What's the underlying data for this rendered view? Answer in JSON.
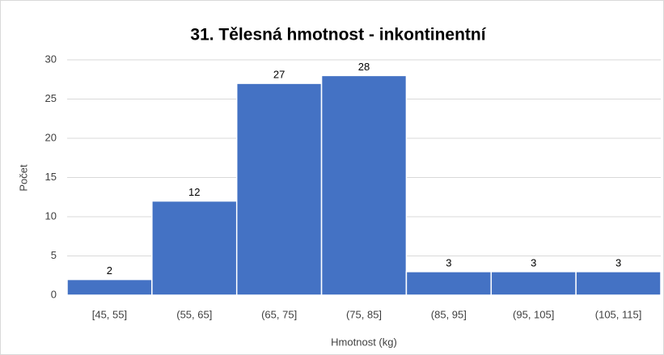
{
  "chart_data": {
    "type": "bar",
    "title": "31. Tělesná hmotnost - inkontinentní",
    "x_label": "Hmotnost (kg)",
    "y_label": "Počet",
    "categories": [
      "[45, 55]",
      "(55, 65]",
      "(65, 75]",
      "(75, 85]",
      "(85, 95]",
      "(95, 105]",
      "(105, 115]"
    ],
    "values": [
      2,
      12,
      27,
      28,
      3,
      3,
      3
    ],
    "color": "#4472c4",
    "ylim": [
      0,
      30
    ],
    "yticks": [
      0,
      5,
      10,
      15,
      20,
      25,
      30
    ],
    "grid": true
  }
}
